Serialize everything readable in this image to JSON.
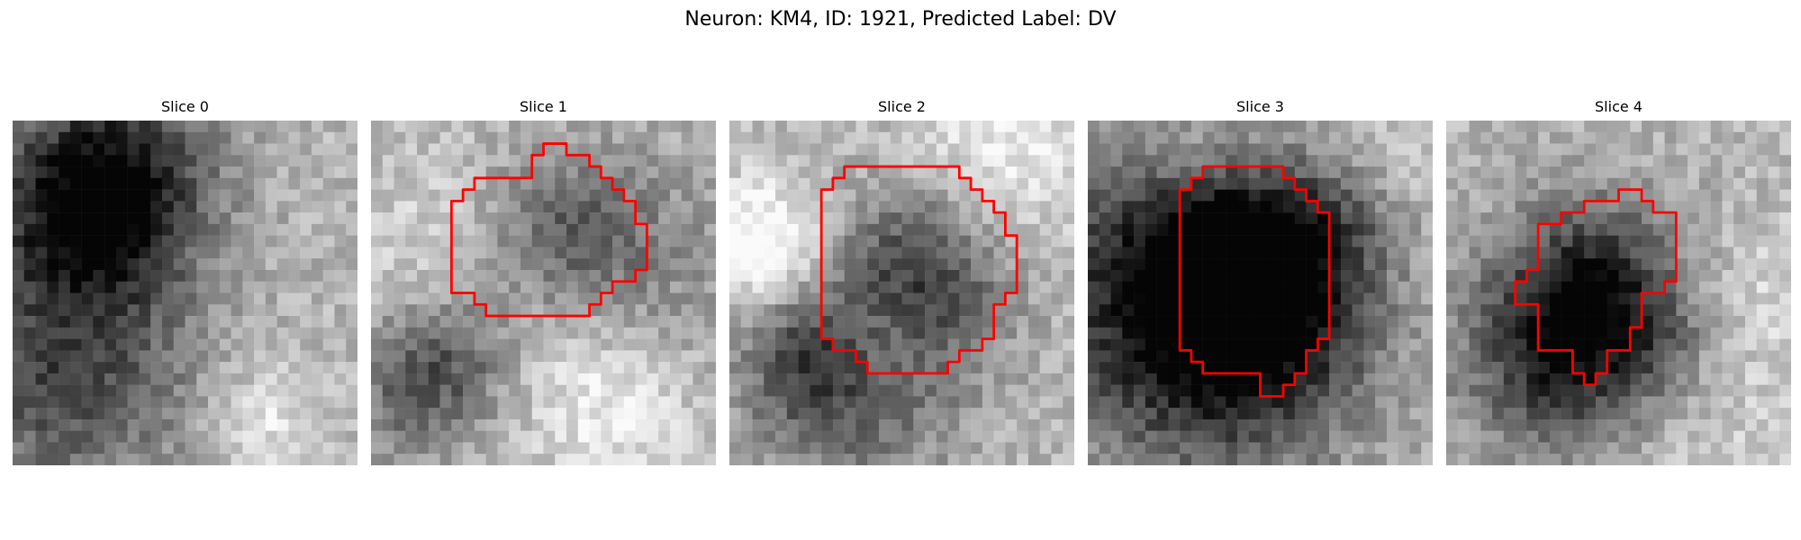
{
  "figure": {
    "title": "Neuron: KM4, ID: 1921, Predicted Label: DV"
  },
  "panels": [
    {
      "label": "Slice 0",
      "seed": 11,
      "has_contour": false,
      "contour": []
    },
    {
      "label": "Slice 1",
      "seed": 23,
      "has_contour": true,
      "contour": [
        [
          15,
          2
        ],
        [
          16,
          2
        ],
        [
          17,
          2
        ],
        [
          17,
          3
        ],
        [
          18,
          3
        ],
        [
          19,
          3
        ],
        [
          19,
          4
        ],
        [
          20,
          4
        ],
        [
          20,
          5
        ],
        [
          21,
          5
        ],
        [
          21,
          6
        ],
        [
          22,
          6
        ],
        [
          22,
          7
        ],
        [
          23,
          7
        ],
        [
          23,
          8
        ],
        [
          23,
          9
        ],
        [
          24,
          9
        ],
        [
          24,
          10
        ],
        [
          24,
          11
        ],
        [
          24,
          12
        ],
        [
          24,
          13
        ],
        [
          23,
          13
        ],
        [
          23,
          14
        ],
        [
          22,
          14
        ],
        [
          21,
          14
        ],
        [
          21,
          15
        ],
        [
          20,
          15
        ],
        [
          20,
          16
        ],
        [
          19,
          16
        ],
        [
          19,
          17
        ],
        [
          18,
          17
        ],
        [
          17,
          17
        ],
        [
          16,
          17
        ],
        [
          15,
          17
        ],
        [
          14,
          17
        ],
        [
          13,
          17
        ],
        [
          12,
          17
        ],
        [
          11,
          17
        ],
        [
          10,
          17
        ],
        [
          10,
          16
        ],
        [
          9,
          16
        ],
        [
          9,
          15
        ],
        [
          8,
          15
        ],
        [
          7,
          15
        ],
        [
          7,
          14
        ],
        [
          7,
          13
        ],
        [
          7,
          12
        ],
        [
          7,
          11
        ],
        [
          7,
          10
        ],
        [
          7,
          9
        ],
        [
          7,
          8
        ],
        [
          7,
          7
        ],
        [
          8,
          7
        ],
        [
          8,
          6
        ],
        [
          9,
          6
        ],
        [
          9,
          5
        ],
        [
          10,
          5
        ],
        [
          11,
          5
        ],
        [
          12,
          5
        ],
        [
          13,
          5
        ],
        [
          14,
          5
        ],
        [
          14,
          4
        ],
        [
          14,
          3
        ],
        [
          15,
          3
        ],
        [
          15,
          2
        ]
      ]
    },
    {
      "label": "Slice 2",
      "seed": 37,
      "has_contour": true,
      "contour": [
        [
          10,
          4
        ],
        [
          11,
          4
        ],
        [
          12,
          4
        ],
        [
          13,
          4
        ],
        [
          14,
          4
        ],
        [
          15,
          4
        ],
        [
          16,
          4
        ],
        [
          17,
          4
        ],
        [
          18,
          4
        ],
        [
          19,
          4
        ],
        [
          20,
          4
        ],
        [
          20,
          5
        ],
        [
          21,
          5
        ],
        [
          21,
          6
        ],
        [
          22,
          6
        ],
        [
          22,
          7
        ],
        [
          23,
          7
        ],
        [
          23,
          8
        ],
        [
          24,
          8
        ],
        [
          24,
          9
        ],
        [
          24,
          10
        ],
        [
          25,
          10
        ],
        [
          25,
          11
        ],
        [
          25,
          12
        ],
        [
          25,
          13
        ],
        [
          25,
          14
        ],
        [
          25,
          15
        ],
        [
          24,
          15
        ],
        [
          24,
          16
        ],
        [
          23,
          16
        ],
        [
          23,
          17
        ],
        [
          23,
          18
        ],
        [
          23,
          19
        ],
        [
          22,
          19
        ],
        [
          22,
          20
        ],
        [
          21,
          20
        ],
        [
          20,
          20
        ],
        [
          20,
          21
        ],
        [
          19,
          21
        ],
        [
          19,
          22
        ],
        [
          18,
          22
        ],
        [
          17,
          22
        ],
        [
          16,
          22
        ],
        [
          15,
          22
        ],
        [
          14,
          22
        ],
        [
          13,
          22
        ],
        [
          12,
          22
        ],
        [
          12,
          21
        ],
        [
          11,
          21
        ],
        [
          11,
          20
        ],
        [
          10,
          20
        ],
        [
          9,
          20
        ],
        [
          9,
          19
        ],
        [
          8,
          19
        ],
        [
          8,
          18
        ],
        [
          8,
          17
        ],
        [
          8,
          16
        ],
        [
          8,
          15
        ],
        [
          8,
          14
        ],
        [
          8,
          13
        ],
        [
          8,
          12
        ],
        [
          8,
          11
        ],
        [
          8,
          10
        ],
        [
          8,
          9
        ],
        [
          8,
          8
        ],
        [
          8,
          7
        ],
        [
          8,
          6
        ],
        [
          9,
          6
        ],
        [
          9,
          5
        ],
        [
          10,
          5
        ],
        [
          10,
          4
        ]
      ]
    },
    {
      "label": "Slice 3",
      "seed": 53,
      "has_contour": true,
      "contour": [
        [
          8,
          9
        ],
        [
          8,
          8
        ],
        [
          8,
          7
        ],
        [
          8,
          6
        ],
        [
          9,
          6
        ],
        [
          9,
          5
        ],
        [
          10,
          5
        ],
        [
          10,
          4
        ],
        [
          11,
          4
        ],
        [
          12,
          4
        ],
        [
          13,
          4
        ],
        [
          14,
          4
        ],
        [
          15,
          4
        ],
        [
          16,
          4
        ],
        [
          17,
          4
        ],
        [
          17,
          5
        ],
        [
          18,
          5
        ],
        [
          18,
          6
        ],
        [
          19,
          6
        ],
        [
          19,
          7
        ],
        [
          20,
          7
        ],
        [
          20,
          8
        ],
        [
          21,
          8
        ],
        [
          21,
          9
        ],
        [
          21,
          10
        ],
        [
          21,
          11
        ],
        [
          21,
          12
        ],
        [
          21,
          13
        ],
        [
          21,
          14
        ],
        [
          21,
          15
        ],
        [
          21,
          16
        ],
        [
          21,
          17
        ],
        [
          21,
          18
        ],
        [
          21,
          19
        ],
        [
          20,
          19
        ],
        [
          20,
          20
        ],
        [
          19,
          20
        ],
        [
          19,
          21
        ],
        [
          19,
          22
        ],
        [
          18,
          22
        ],
        [
          18,
          23
        ],
        [
          17,
          23
        ],
        [
          17,
          24
        ],
        [
          16,
          24
        ],
        [
          15,
          24
        ],
        [
          15,
          23
        ],
        [
          15,
          22
        ],
        [
          14,
          22
        ],
        [
          13,
          22
        ],
        [
          12,
          22
        ],
        [
          11,
          22
        ],
        [
          10,
          22
        ],
        [
          10,
          21
        ],
        [
          9,
          21
        ],
        [
          9,
          20
        ],
        [
          8,
          20
        ],
        [
          8,
          19
        ],
        [
          8,
          18
        ],
        [
          8,
          17
        ],
        [
          8,
          16
        ],
        [
          8,
          15
        ],
        [
          8,
          14
        ],
        [
          8,
          13
        ],
        [
          8,
          12
        ],
        [
          8,
          11
        ],
        [
          8,
          10
        ],
        [
          8,
          9
        ]
      ]
    },
    {
      "label": "Slice 4",
      "seed": 71,
      "has_contour": true,
      "contour": [
        [
          11,
          8
        ],
        [
          12,
          8
        ],
        [
          12,
          7
        ],
        [
          13,
          7
        ],
        [
          14,
          7
        ],
        [
          15,
          7
        ],
        [
          15,
          6
        ],
        [
          16,
          6
        ],
        [
          17,
          6
        ],
        [
          17,
          7
        ],
        [
          18,
          7
        ],
        [
          18,
          8
        ],
        [
          19,
          8
        ],
        [
          20,
          8
        ],
        [
          20,
          9
        ],
        [
          20,
          10
        ],
        [
          20,
          11
        ],
        [
          20,
          12
        ],
        [
          20,
          13
        ],
        [
          20,
          14
        ],
        [
          19,
          14
        ],
        [
          19,
          15
        ],
        [
          18,
          15
        ],
        [
          17,
          15
        ],
        [
          17,
          16
        ],
        [
          17,
          17
        ],
        [
          17,
          18
        ],
        [
          16,
          18
        ],
        [
          16,
          19
        ],
        [
          16,
          20
        ],
        [
          15,
          20
        ],
        [
          14,
          20
        ],
        [
          14,
          21
        ],
        [
          14,
          22
        ],
        [
          13,
          22
        ],
        [
          13,
          23
        ],
        [
          12,
          23
        ],
        [
          12,
          22
        ],
        [
          11,
          22
        ],
        [
          11,
          21
        ],
        [
          11,
          20
        ],
        [
          10,
          20
        ],
        [
          9,
          20
        ],
        [
          8,
          20
        ],
        [
          8,
          19
        ],
        [
          8,
          18
        ],
        [
          8,
          17
        ],
        [
          8,
          16
        ],
        [
          7,
          16
        ],
        [
          6,
          16
        ],
        [
          6,
          15
        ],
        [
          6,
          14
        ],
        [
          7,
          14
        ],
        [
          7,
          13
        ],
        [
          8,
          13
        ],
        [
          8,
          12
        ],
        [
          8,
          11
        ],
        [
          8,
          10
        ],
        [
          8,
          9
        ],
        [
          9,
          9
        ],
        [
          10,
          9
        ],
        [
          10,
          8
        ],
        [
          11,
          8
        ]
      ]
    }
  ],
  "colors": {
    "contour": "#ff0000",
    "background": "#ffffff"
  }
}
